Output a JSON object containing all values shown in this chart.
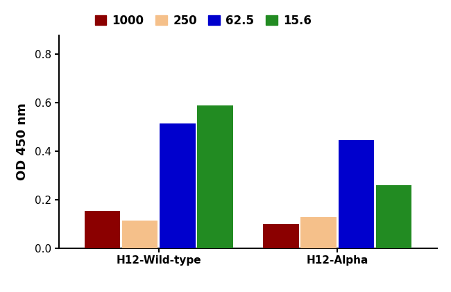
{
  "groups": [
    "H12-Wild-type",
    "H12-Alpha"
  ],
  "series": [
    {
      "label": "1000",
      "color": "#8B0000",
      "values": [
        0.155,
        0.1
      ]
    },
    {
      "label": "250",
      "color": "#F5C08A",
      "values": [
        0.115,
        0.127
      ]
    },
    {
      "label": "62.5",
      "color": "#0000CD",
      "values": [
        0.515,
        0.447
      ]
    },
    {
      "label": "15.6",
      "color": "#228B22",
      "values": [
        0.59,
        0.26
      ]
    }
  ],
  "ylabel": "OD 450 nm",
  "ylim": [
    0,
    0.88
  ],
  "yticks": [
    0.0,
    0.2,
    0.4,
    0.6,
    0.8
  ],
  "bar_width": 0.1,
  "group_centers": [
    0.28,
    0.78
  ],
  "background_color": "#ffffff",
  "legend_fontsize": 12,
  "axis_fontsize": 13,
  "tick_fontsize": 11
}
